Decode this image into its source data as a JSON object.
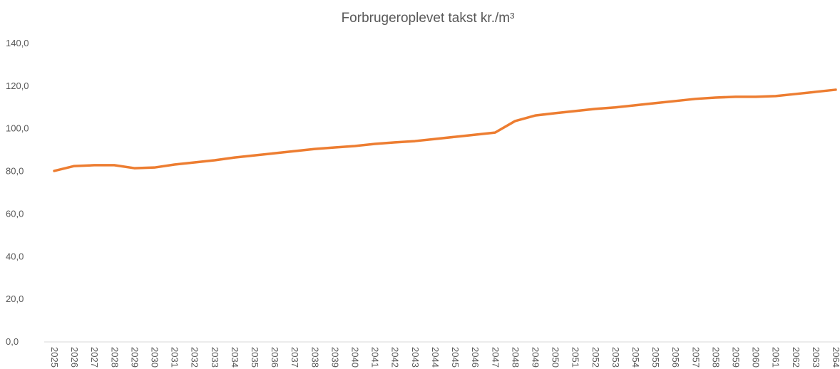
{
  "chart_data": {
    "type": "line",
    "title": "Forbrugeroplevet takst kr./m³",
    "categories": [
      "2025",
      "2026",
      "2027",
      "2028",
      "2029",
      "2030",
      "2031",
      "2032",
      "2033",
      "2034",
      "2035",
      "2036",
      "2037",
      "2038",
      "2039",
      "2040",
      "2041",
      "2042",
      "2043",
      "2044",
      "2045",
      "2046",
      "2047",
      "2048",
      "2049",
      "2050",
      "2051",
      "2052",
      "2053",
      "2054",
      "2055",
      "2056",
      "2057",
      "2058",
      "2059",
      "2060",
      "2061",
      "2062",
      "2063",
      "2064"
    ],
    "values": [
      80.2,
      82.5,
      82.9,
      82.9,
      81.5,
      81.8,
      83.2,
      84.2,
      85.2,
      86.5,
      87.5,
      88.5,
      89.5,
      90.5,
      91.2,
      91.9,
      92.9,
      93.6,
      94.2,
      95.2,
      96.2,
      97.2,
      98.2,
      103.6,
      106.2,
      107.3,
      108.3,
      109.3,
      110,
      111,
      112,
      113,
      114,
      114.6,
      115,
      115,
      115.3,
      116.3,
      117.3,
      118.3
    ],
    "color": "#ED7D31",
    "ylim": [
      0,
      140
    ],
    "yticks": [
      {
        "value": 0,
        "label": "0,0"
      },
      {
        "value": 20,
        "label": "20,0"
      },
      {
        "value": 40,
        "label": "40,0"
      },
      {
        "value": 60,
        "label": "60,0"
      },
      {
        "value": 80,
        "label": "80,0"
      },
      {
        "value": 100,
        "label": "100,0"
      },
      {
        "value": 120,
        "label": "120,0"
      },
      {
        "value": 140,
        "label": "140,0"
      }
    ],
    "grid": false
  }
}
